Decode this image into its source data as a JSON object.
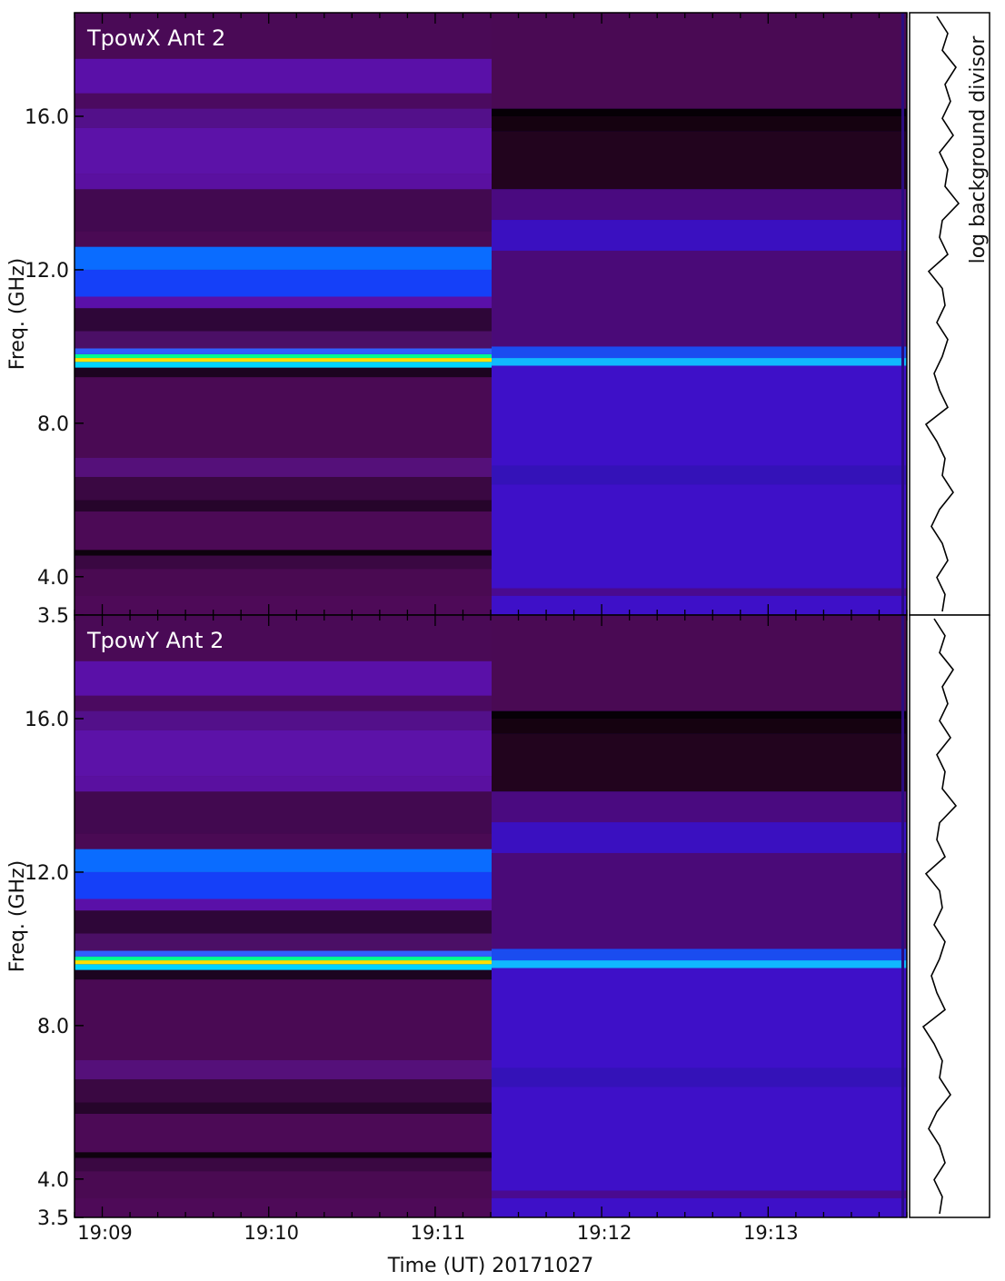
{
  "chart_data": [
    {
      "type": "heatmap",
      "panel_label": "TpowX Ant 2",
      "ylabel": "Freq. (GHz)",
      "yticks": [
        "3.5",
        "4.0",
        "8.0",
        "12.0",
        "16.0"
      ],
      "ylim": [
        3.0,
        18.7
      ],
      "x": {
        "start": "19:08:50",
        "stop": "19:13:50",
        "split": "19:11:20"
      },
      "xticks": [
        "19:09",
        "19:10",
        "19:11",
        "19:12",
        "19:13"
      ],
      "colors": {
        "left_base": "#4a0a54",
        "right_base": "#3e10c8"
      },
      "bands_left": [
        {
          "f0": 3.0,
          "f1": 3.5,
          "color": "#4e0a58"
        },
        {
          "f0": 3.5,
          "f1": 4.2,
          "color": "#4a0a52"
        },
        {
          "f0": 4.2,
          "f1": 4.55,
          "color": "#3a0842"
        },
        {
          "f0": 4.55,
          "f1": 4.7,
          "color": "#0e020e"
        },
        {
          "f0": 4.7,
          "f1": 5.7,
          "color": "#4c0a56"
        },
        {
          "f0": 5.7,
          "f1": 6.0,
          "color": "#26052b"
        },
        {
          "f0": 6.0,
          "f1": 6.6,
          "color": "#3a0842"
        },
        {
          "f0": 6.6,
          "f1": 7.1,
          "color": "#55107a"
        },
        {
          "f0": 7.1,
          "f1": 9.2,
          "color": "#4a0a54"
        },
        {
          "f0": 9.2,
          "f1": 9.45,
          "color": "#1c0420"
        },
        {
          "f0": 9.45,
          "f1": 9.6,
          "color": "#00d4ff"
        },
        {
          "f0": 9.6,
          "f1": 9.7,
          "color": "#ffe000"
        },
        {
          "f0": 9.7,
          "f1": 9.8,
          "color": "#00ff90"
        },
        {
          "f0": 9.8,
          "f1": 9.95,
          "color": "#3060ff"
        },
        {
          "f0": 9.95,
          "f1": 10.4,
          "color": "#4b0f66"
        },
        {
          "f0": 10.4,
          "f1": 11.0,
          "color": "#2e0638"
        },
        {
          "f0": 11.0,
          "f1": 11.3,
          "color": "#5a10a8"
        },
        {
          "f0": 11.3,
          "f1": 12.0,
          "color": "#1540f8"
        },
        {
          "f0": 12.0,
          "f1": 12.6,
          "color": "#0a6cff"
        },
        {
          "f0": 12.6,
          "f1": 13.0,
          "color": "#4a0a54"
        },
        {
          "f0": 13.0,
          "f1": 14.1,
          "color": "#420950"
        },
        {
          "f0": 14.1,
          "f1": 14.5,
          "color": "#5a10a0"
        },
        {
          "f0": 14.5,
          "f1": 15.7,
          "color": "#5c12a8"
        },
        {
          "f0": 15.7,
          "f1": 16.2,
          "color": "#53108a"
        },
        {
          "f0": 16.2,
          "f1": 16.6,
          "color": "#4b0a60"
        },
        {
          "f0": 16.6,
          "f1": 17.5,
          "color": "#5a10a8"
        },
        {
          "f0": 17.5,
          "f1": 18.7,
          "color": "#4a0a56"
        }
      ],
      "bands_right": [
        {
          "f0": 3.0,
          "f1": 3.5,
          "color": "#3e10c8"
        },
        {
          "f0": 3.5,
          "f1": 3.7,
          "color": "#4a0a90"
        },
        {
          "f0": 3.7,
          "f1": 6.4,
          "color": "#3e10c8"
        },
        {
          "f0": 6.4,
          "f1": 6.9,
          "color": "#3412b8"
        },
        {
          "f0": 6.9,
          "f1": 9.5,
          "color": "#3e10c8"
        },
        {
          "f0": 9.5,
          "f1": 9.7,
          "color": "#10b8ff"
        },
        {
          "f0": 9.7,
          "f1": 10.0,
          "color": "#1a4cf0"
        },
        {
          "f0": 10.0,
          "f1": 12.5,
          "color": "#4a0a78"
        },
        {
          "f0": 12.5,
          "f1": 13.3,
          "color": "#3a10c0"
        },
        {
          "f0": 13.3,
          "f1": 14.1,
          "color": "#4a0a80"
        },
        {
          "f0": 14.1,
          "f1": 15.6,
          "color": "#22041e"
        },
        {
          "f0": 15.6,
          "f1": 16.0,
          "color": "#150210"
        },
        {
          "f0": 16.0,
          "f1": 16.2,
          "color": "#060006"
        },
        {
          "f0": 16.2,
          "f1": 18.7,
          "color": "#4a0a54"
        }
      ],
      "side_panel": {
        "label": "log background divisor",
        "profile": [
          0.4,
          0.6,
          0.5,
          0.75,
          0.55,
          0.65,
          0.5,
          0.7,
          0.45,
          0.6,
          0.55,
          0.8,
          0.5,
          0.45,
          0.6,
          0.25,
          0.5,
          0.55,
          0.4,
          0.6,
          0.5,
          0.35,
          0.45,
          0.6,
          0.2,
          0.4,
          0.55,
          0.5,
          0.7,
          0.45,
          0.3,
          0.5,
          0.6,
          0.4,
          0.55,
          0.5
        ]
      }
    },
    {
      "type": "heatmap",
      "panel_label": "TpowY Ant 2",
      "ylabel": "Freq. (GHz)",
      "yticks": [
        "3.5",
        "4.0",
        "8.0",
        "12.0",
        "16.0"
      ],
      "ylim": [
        3.0,
        18.7
      ],
      "x": {
        "start": "19:08:50",
        "stop": "19:13:50",
        "split": "19:11:20"
      },
      "xticks": [
        "19:09",
        "19:10",
        "19:11",
        "19:12",
        "19:13"
      ],
      "xlabel": "Time (UT) 20171027",
      "colors": {
        "left_base": "#4a0a54",
        "right_base": "#3e10c8"
      },
      "bands_left": [
        {
          "f0": 3.0,
          "f1": 3.5,
          "color": "#4e0a58"
        },
        {
          "f0": 3.5,
          "f1": 4.2,
          "color": "#4a0a52"
        },
        {
          "f0": 4.2,
          "f1": 4.55,
          "color": "#3a0842"
        },
        {
          "f0": 4.55,
          "f1": 4.7,
          "color": "#0e020e"
        },
        {
          "f0": 4.7,
          "f1": 5.7,
          "color": "#4c0a56"
        },
        {
          "f0": 5.7,
          "f1": 6.0,
          "color": "#26052b"
        },
        {
          "f0": 6.0,
          "f1": 6.6,
          "color": "#3a0842"
        },
        {
          "f0": 6.6,
          "f1": 7.1,
          "color": "#55107a"
        },
        {
          "f0": 7.1,
          "f1": 9.2,
          "color": "#4a0a54"
        },
        {
          "f0": 9.2,
          "f1": 9.45,
          "color": "#1c0420"
        },
        {
          "f0": 9.45,
          "f1": 9.6,
          "color": "#00d4ff"
        },
        {
          "f0": 9.6,
          "f1": 9.7,
          "color": "#ffe000"
        },
        {
          "f0": 9.7,
          "f1": 9.8,
          "color": "#00ff90"
        },
        {
          "f0": 9.8,
          "f1": 9.95,
          "color": "#3060ff"
        },
        {
          "f0": 9.95,
          "f1": 10.4,
          "color": "#4b0f66"
        },
        {
          "f0": 10.4,
          "f1": 11.0,
          "color": "#2e0638"
        },
        {
          "f0": 11.0,
          "f1": 11.3,
          "color": "#5a10a8"
        },
        {
          "f0": 11.3,
          "f1": 12.0,
          "color": "#1540f8"
        },
        {
          "f0": 12.0,
          "f1": 12.6,
          "color": "#0a6cff"
        },
        {
          "f0": 12.6,
          "f1": 13.0,
          "color": "#4a0a54"
        },
        {
          "f0": 13.0,
          "f1": 14.1,
          "color": "#420950"
        },
        {
          "f0": 14.1,
          "f1": 14.5,
          "color": "#5a10a0"
        },
        {
          "f0": 14.5,
          "f1": 15.7,
          "color": "#5c12a8"
        },
        {
          "f0": 15.7,
          "f1": 16.2,
          "color": "#53108a"
        },
        {
          "f0": 16.2,
          "f1": 16.6,
          "color": "#4b0a60"
        },
        {
          "f0": 16.6,
          "f1": 17.5,
          "color": "#5a10a8"
        },
        {
          "f0": 17.5,
          "f1": 18.7,
          "color": "#4a0a56"
        }
      ],
      "bands_right": [
        {
          "f0": 3.0,
          "f1": 3.5,
          "color": "#3e10c8"
        },
        {
          "f0": 3.5,
          "f1": 3.7,
          "color": "#4a0a90"
        },
        {
          "f0": 3.7,
          "f1": 6.4,
          "color": "#3e10c8"
        },
        {
          "f0": 6.4,
          "f1": 6.9,
          "color": "#3412b8"
        },
        {
          "f0": 6.9,
          "f1": 9.5,
          "color": "#3e10c8"
        },
        {
          "f0": 9.5,
          "f1": 9.7,
          "color": "#10b8ff"
        },
        {
          "f0": 9.7,
          "f1": 10.0,
          "color": "#1a4cf0"
        },
        {
          "f0": 10.0,
          "f1": 12.5,
          "color": "#4a0a78"
        },
        {
          "f0": 12.5,
          "f1": 13.3,
          "color": "#3a10c0"
        },
        {
          "f0": 13.3,
          "f1": 14.1,
          "color": "#4a0a80"
        },
        {
          "f0": 14.1,
          "f1": 15.6,
          "color": "#22041e"
        },
        {
          "f0": 15.6,
          "f1": 16.0,
          "color": "#150210"
        },
        {
          "f0": 16.0,
          "f1": 16.2,
          "color": "#060006"
        },
        {
          "f0": 16.2,
          "f1": 18.7,
          "color": "#4a0a54"
        }
      ],
      "side_panel": {
        "profile": [
          0.35,
          0.55,
          0.45,
          0.7,
          0.5,
          0.6,
          0.45,
          0.65,
          0.4,
          0.55,
          0.5,
          0.75,
          0.45,
          0.4,
          0.55,
          0.2,
          0.45,
          0.5,
          0.35,
          0.55,
          0.45,
          0.3,
          0.4,
          0.55,
          0.15,
          0.35,
          0.5,
          0.45,
          0.65,
          0.4,
          0.25,
          0.45,
          0.55,
          0.35,
          0.5,
          0.45
        ]
      }
    }
  ]
}
